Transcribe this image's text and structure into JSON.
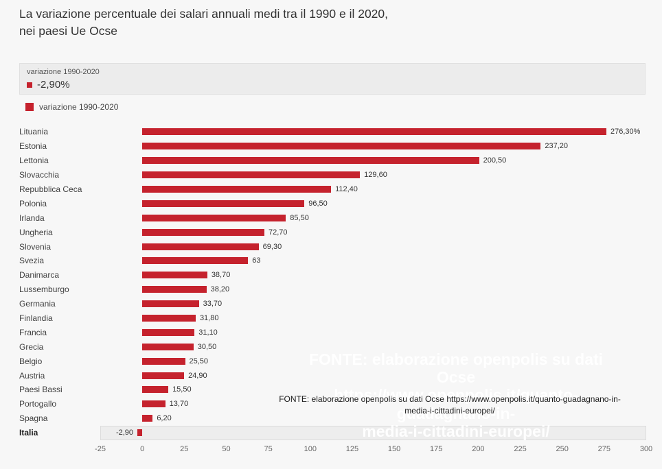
{
  "title": "La variazione percentuale dei salari annuali medi tra il 1990 e il 2020, nei paesi Ue Ocse",
  "tooltip": {
    "series_label": "variazione 1990-2020",
    "value": "-2,90%"
  },
  "legend": {
    "items": [
      {
        "label": "variazione 1990-2020",
        "color": "#c5222d"
      }
    ]
  },
  "watermark": {
    "lines": [
      "FONTE: elaborazione openpolis su dati Ocse",
      "https://www.openpolis.it/quanto-guadagnano-in-",
      "media-i-cittadini-europei/"
    ]
  },
  "source_note": "FONTE: elaborazione openpolis su dati Ocse https://www.openpolis.it/quanto-guadagnano-in-media-i-cittadini-europei/",
  "chart_data": {
    "type": "bar",
    "orientation": "horizontal",
    "title": "La variazione percentuale dei salari annuali medi tra il 1990 e il 2020, nei paesi Ue Ocse",
    "series_name": "variazione 1990-2020",
    "categories": [
      "Lituania",
      "Estonia",
      "Lettonia",
      "Slovacchia",
      "Repubblica Ceca",
      "Polonia",
      "Irlanda",
      "Ungheria",
      "Slovenia",
      "Svezia",
      "Danimarca",
      "Lussemburgo",
      "Germania",
      "Finlandia",
      "Francia",
      "Grecia",
      "Belgio",
      "Austria",
      "Paesi Bassi",
      "Portogallo",
      "Spagna",
      "Italia"
    ],
    "values": [
      276.3,
      237.2,
      200.5,
      129.6,
      112.4,
      96.5,
      85.5,
      72.7,
      69.3,
      63,
      38.7,
      38.2,
      33.7,
      31.8,
      31.1,
      30.5,
      25.5,
      24.9,
      15.5,
      13.7,
      6.2,
      -2.9
    ],
    "value_labels": [
      "276,30%",
      "237,20",
      "200,50",
      "129,60",
      "112,40",
      "96,50",
      "85,50",
      "72,70",
      "69,30",
      "63",
      "38,70",
      "38,20",
      "33,70",
      "31,80",
      "31,10",
      "30,50",
      "25,50",
      "24,90",
      "15,50",
      "13,70",
      "6,20",
      "-2,90"
    ],
    "highlight_category": "Italia",
    "bar_color": "#c5222d",
    "xlim": [
      -25,
      300
    ],
    "x_ticks": [
      -25,
      0,
      25,
      50,
      75,
      100,
      125,
      150,
      175,
      200,
      225,
      250,
      275,
      300
    ],
    "grid": false,
    "legend_position": "top-left",
    "xlabel": "",
    "ylabel": ""
  }
}
